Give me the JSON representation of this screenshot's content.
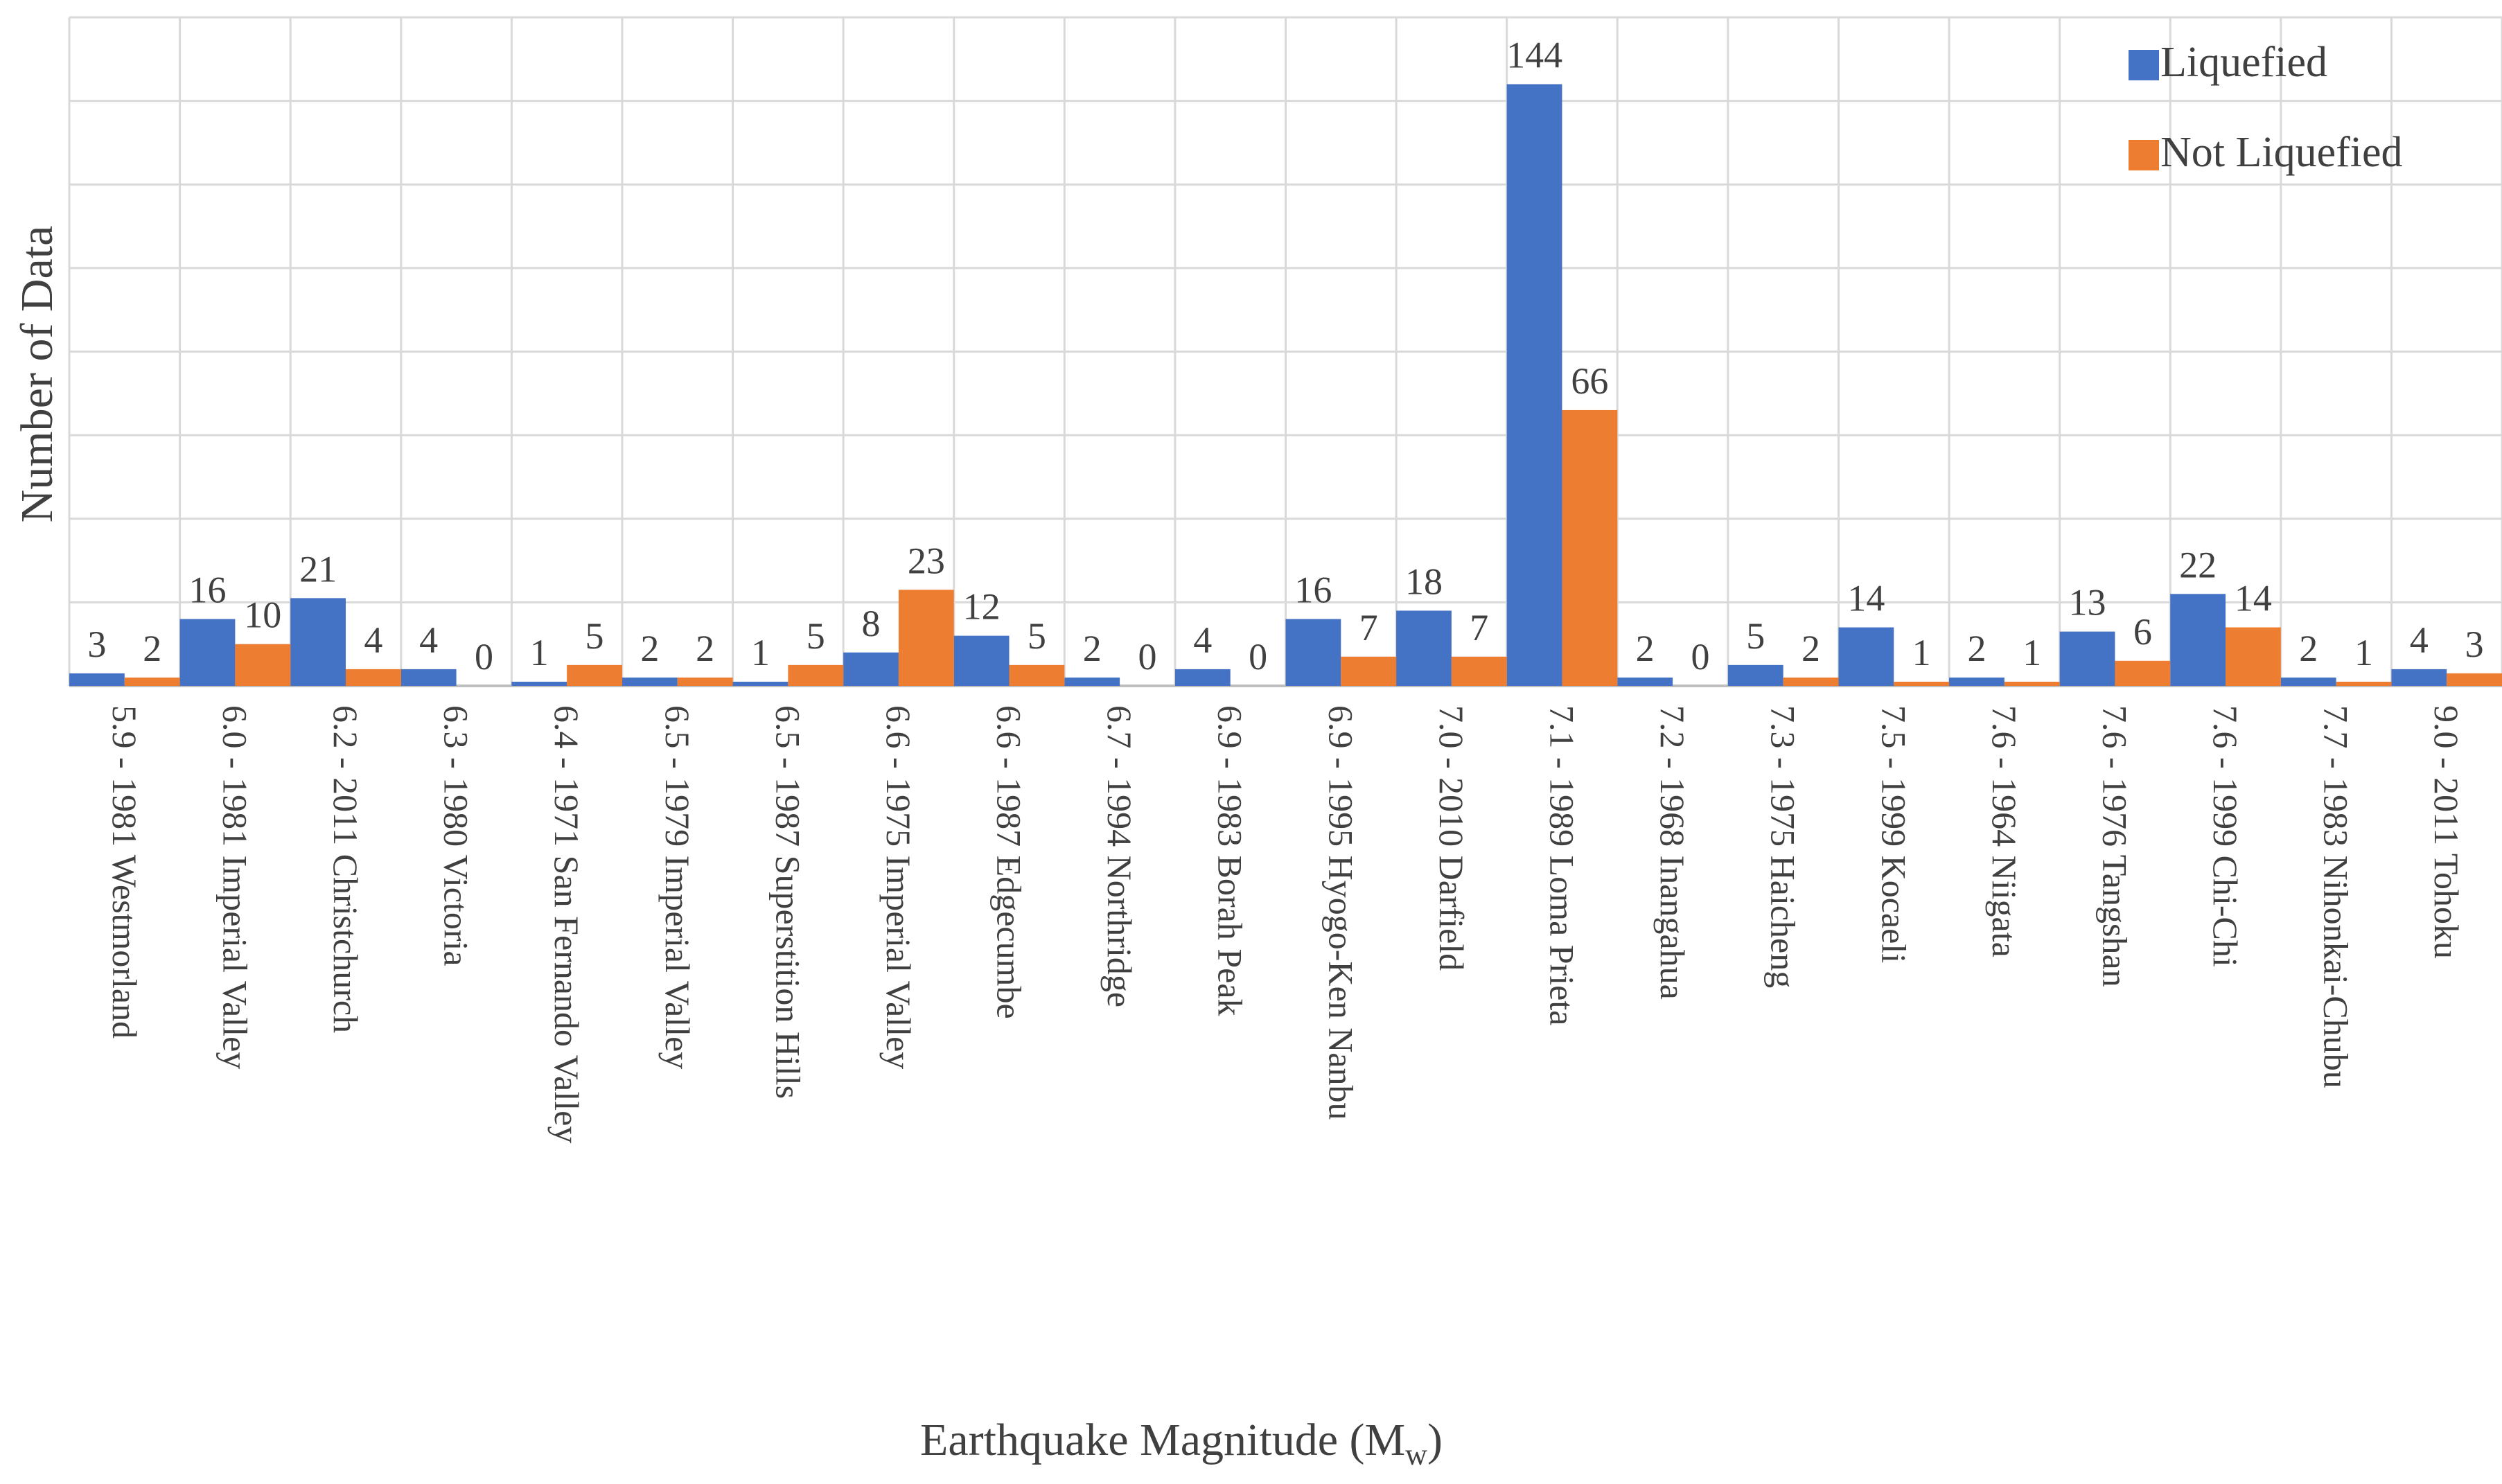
{
  "chart_data": {
    "type": "bar",
    "xlabel": "Earthquake Magnitude (M",
    "xlabel_subscript": "w",
    "xlabel_suffix": ")",
    "ylabel": "Number of Data",
    "ylim": [
      0,
      160
    ],
    "grid": true,
    "legend_position": "top-right",
    "categories": [
      "5.9 - 1981 Westmorland",
      "6.0 - 1981 Imperial Valley",
      "6.2 - 2011 Christchurch",
      "6.3 - 1980 Victoria",
      "6.4 - 1971 San Fernando Valley",
      "6.5 - 1979 Imperial Valley",
      "6.5 - 1987 Superstition Hills",
      "6.6 - 1975 Imperial Valley",
      "6.6 - 1987 Edgecumbe",
      "6.7 - 1994 Northridge",
      "6.9 - 1983 Borah Peak",
      "6.9 - 1995 Hyogo-Ken Nanbu",
      "7.0 - 2010 Darfield",
      "7.1 - 1989 Loma Prieta",
      "7.2 - 1968 Inangahua",
      "7.3 - 1975 Haicheng",
      "7.5 - 1999 Kocaeli",
      "7.6 - 1964 Niigata",
      "7.6 - 1976 Tangshan",
      "7.6 - 1999 Chi-Chi",
      "7.7 - 1983 Nihonkai-Chubu",
      "9.0 - 2011 Tohoku"
    ],
    "series": [
      {
        "name": "Liquefied",
        "color": "#4472c4",
        "values": [
          3,
          16,
          21,
          4,
          1,
          2,
          1,
          8,
          12,
          2,
          4,
          16,
          18,
          144,
          2,
          5,
          14,
          2,
          13,
          22,
          2,
          4
        ]
      },
      {
        "name": "Not Liquefied",
        "color": "#ed7d31",
        "values": [
          2,
          10,
          4,
          0,
          5,
          2,
          5,
          23,
          5,
          0,
          0,
          7,
          7,
          66,
          0,
          2,
          1,
          1,
          6,
          14,
          1,
          3
        ]
      }
    ]
  }
}
